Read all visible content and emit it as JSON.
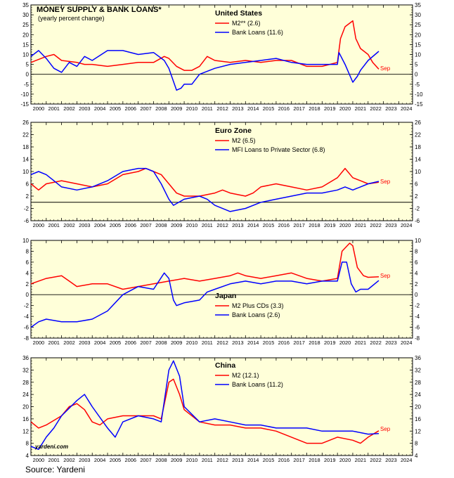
{
  "title": "MONEY SUPPLY & BANK LOANS*",
  "subtitle": "(yearly percent change)",
  "source": "Source: Yardeni",
  "watermark": "yardeni.com",
  "colors": {
    "plot_bg": "#ffffd9",
    "red": "#ff0000",
    "blue": "#0000ff",
    "axis": "#000000",
    "grid": "#bbbbbb"
  },
  "chart_data": [
    {
      "type": "line",
      "region": "United States",
      "xlim": [
        2000,
        2024.9
      ],
      "ylim": [
        -15,
        35
      ],
      "yticks": [
        -15,
        -10,
        -5,
        0,
        5,
        10,
        15,
        20,
        25,
        30,
        35
      ],
      "xticks": [
        "2000",
        "2001",
        "2002",
        "2003",
        "2004",
        "2005",
        "2006",
        "2007",
        "2008",
        "2009",
        "2010",
        "2011",
        "2012",
        "2013",
        "2014",
        "2015",
        "2016",
        "2017",
        "2018",
        "2019",
        "2020",
        "2021",
        "2022",
        "2023",
        "2024"
      ],
      "annotations": [
        "Sep"
      ],
      "series": [
        {
          "name": "M2** (2.6)",
          "color": "red",
          "x": [
            2000,
            2001,
            2001.5,
            2002,
            2003,
            2003.5,
            2004,
            2005,
            2006,
            2007,
            2008,
            2008.7,
            2009,
            2009.5,
            2010,
            2010.5,
            2011,
            2011.5,
            2012,
            2013,
            2014,
            2015,
            2016,
            2017,
            2018,
            2019,
            2019.5,
            2020,
            2020.2,
            2020.5,
            2021,
            2021.2,
            2021.5,
            2022,
            2022.3,
            2022.7
          ],
          "y": [
            6,
            9,
            10,
            7,
            6,
            5,
            5,
            4,
            5,
            6,
            6,
            9,
            8,
            4,
            2,
            2,
            4,
            9,
            7,
            6,
            7,
            6,
            7,
            7,
            4,
            4,
            5,
            6,
            18,
            24,
            27,
            18,
            13,
            10,
            6,
            2.6
          ]
        },
        {
          "name": "Bank Loans (11.6)",
          "color": "blue",
          "x": [
            2000,
            2000.5,
            2001,
            2001.5,
            2002,
            2002.5,
            2003,
            2003.5,
            2004,
            2005,
            2006,
            2007,
            2008,
            2008.7,
            2009,
            2009.5,
            2009.8,
            2010,
            2010.5,
            2011,
            2012,
            2013,
            2014,
            2015,
            2016,
            2017,
            2018,
            2019,
            2020,
            2020.1,
            2020.5,
            2021,
            2021.3,
            2021.5,
            2022,
            2022.7
          ],
          "y": [
            9,
            12,
            8,
            3,
            1,
            6,
            4,
            9,
            7,
            12,
            12,
            10,
            11,
            7,
            3,
            -8,
            -7,
            -5,
            -5,
            0,
            3,
            5,
            6,
            7,
            8,
            6,
            5,
            5,
            5,
            11,
            5,
            -4,
            -1,
            2,
            7,
            11.6
          ]
        }
      ]
    },
    {
      "type": "line",
      "region": "Euro Zone",
      "xlim": [
        2000,
        2024.9
      ],
      "ylim": [
        -6,
        26
      ],
      "yticks": [
        -6,
        -2,
        2,
        6,
        10,
        14,
        18,
        22,
        26
      ],
      "xticks": [
        "2000",
        "2001",
        "2002",
        "2003",
        "2004",
        "2005",
        "2006",
        "2007",
        "2008",
        "2009",
        "2010",
        "2011",
        "2012",
        "2013",
        "2014",
        "2015",
        "2016",
        "2017",
        "2018",
        "2019",
        "2020",
        "2021",
        "2022",
        "2023",
        "2024"
      ],
      "annotations": [
        "Sep"
      ],
      "series": [
        {
          "name": "M2 (6.5)",
          "color": "red",
          "x": [
            2000,
            2000.5,
            2001,
            2002,
            2003,
            2004,
            2005,
            2006,
            2007,
            2007.5,
            2008,
            2008.5,
            2009,
            2009.5,
            2010,
            2011,
            2012,
            2012.5,
            2013,
            2014,
            2014.5,
            2015,
            2016,
            2017,
            2018,
            2019,
            2020,
            2020.5,
            2021,
            2021.5,
            2022,
            2022.7
          ],
          "y": [
            6,
            4,
            6,
            7,
            6,
            5,
            6,
            9,
            10,
            11,
            10,
            9,
            6,
            3,
            2,
            2,
            3,
            4,
            3,
            2,
            3,
            5,
            6,
            5,
            4,
            5,
            8,
            11,
            8,
            7,
            6,
            6.5
          ]
        },
        {
          "name": "MFI Loans to Private Sector (6.8)",
          "color": "blue",
          "x": [
            2000,
            2000.5,
            2001,
            2001.5,
            2002,
            2003,
            2004,
            2005,
            2006,
            2007,
            2007.5,
            2008,
            2008.5,
            2009,
            2009.3,
            2010,
            2011,
            2011.5,
            2012,
            2013,
            2014,
            2015,
            2016,
            2017,
            2018,
            2019,
            2020,
            2020.5,
            2021,
            2021.5,
            2022,
            2022.7
          ],
          "y": [
            9,
            10,
            9,
            7,
            5,
            4,
            5,
            7,
            10,
            11,
            11,
            10,
            6,
            1,
            -1,
            1,
            2,
            1,
            -1,
            -3,
            -2,
            0,
            1,
            2,
            3,
            3,
            4,
            5,
            4,
            5,
            6,
            6.8
          ]
        }
      ]
    },
    {
      "type": "line",
      "region": "Japan",
      "xlim": [
        2000,
        2024.9
      ],
      "ylim": [
        -8,
        10
      ],
      "yticks": [
        -8,
        -6,
        -4,
        -2,
        0,
        2,
        4,
        6,
        8,
        10
      ],
      "xticks": [
        "2000",
        "2001",
        "2002",
        "2003",
        "2004",
        "2005",
        "2006",
        "2007",
        "2008",
        "2009",
        "2010",
        "2011",
        "2012",
        "2013",
        "2014",
        "2015",
        "2016",
        "2017",
        "2018",
        "2019",
        "2020",
        "2021",
        "2022",
        "2023",
        "2024"
      ],
      "annotations": [
        "Sep"
      ],
      "series": [
        {
          "name": "M2 Plus CDs (3.3)",
          "color": "red",
          "x": [
            2000,
            2001,
            2002,
            2002.5,
            2003,
            2004,
            2005,
            2006,
            2007,
            2008,
            2009,
            2010,
            2011,
            2012,
            2013,
            2013.5,
            2014,
            2015,
            2016,
            2017,
            2018,
            2019,
            2020,
            2020.3,
            2020.8,
            2021,
            2021.3,
            2021.7,
            2022,
            2022.7
          ],
          "y": [
            2,
            3,
            3.5,
            2.5,
            1.5,
            2,
            2,
            1,
            1.5,
            2,
            2.5,
            3,
            2.5,
            3,
            3.5,
            4,
            3.5,
            3,
            3.5,
            4,
            3,
            2.5,
            3,
            8,
            9.5,
            9,
            5,
            3.5,
            3.2,
            3.3
          ]
        },
        {
          "name": "Bank Loans (2.6)",
          "color": "blue",
          "x": [
            2000,
            2000.5,
            2001,
            2002,
            2003,
            2004,
            2005,
            2006,
            2007,
            2008,
            2008.7,
            2009,
            2009.3,
            2009.5,
            2010,
            2011,
            2011.5,
            2012,
            2013,
            2014,
            2015,
            2016,
            2017,
            2018,
            2019,
            2020,
            2020.3,
            2020.6,
            2020.9,
            2021.2,
            2021.5,
            2022,
            2022.7
          ],
          "y": [
            -6,
            -5,
            -4.5,
            -5,
            -5,
            -4.5,
            -3,
            0,
            1.5,
            1,
            4,
            3,
            -1,
            -2,
            -1.5,
            -1,
            0.5,
            1,
            2,
            2.5,
            2,
            2.5,
            2.5,
            2,
            2.5,
            2.5,
            6,
            6,
            2,
            0.5,
            1,
            1,
            2.6
          ]
        }
      ]
    },
    {
      "type": "line",
      "region": "China",
      "xlim": [
        2000,
        2024.9
      ],
      "ylim": [
        4,
        36
      ],
      "yticks": [
        4,
        8,
        12,
        16,
        20,
        24,
        28,
        32,
        36
      ],
      "xticks": [
        "2000",
        "2001",
        "2002",
        "2003",
        "2004",
        "2005",
        "2006",
        "2007",
        "2008",
        "2009",
        "2010",
        "2011",
        "2012",
        "2013",
        "2014",
        "2015",
        "2016",
        "2017",
        "2018",
        "2019",
        "2020",
        "2021",
        "2022",
        "2023",
        "2024"
      ],
      "annotations": [
        "Sep"
      ],
      "series": [
        {
          "name": "M2 (12.1)",
          "color": "red",
          "x": [
            2000,
            2000.5,
            2001,
            2002,
            2002.5,
            2003,
            2003.5,
            2004,
            2004.5,
            2005,
            2006,
            2007,
            2008,
            2008.5,
            2009,
            2009.3,
            2009.7,
            2010,
            2011,
            2012,
            2013,
            2014,
            2015,
            2016,
            2017,
            2018,
            2019,
            2020,
            2021,
            2021.5,
            2022,
            2022.7
          ],
          "y": [
            15,
            13,
            14,
            17,
            20,
            21,
            19,
            15,
            14,
            16,
            17,
            17,
            17,
            16,
            28,
            29,
            24,
            19,
            15,
            14,
            14,
            13,
            13,
            12,
            10,
            8,
            8,
            10,
            9,
            8,
            10,
            12.1
          ]
        },
        {
          "name": "Bank Loans (11.2)",
          "color": "blue",
          "x": [
            2000,
            2000.5,
            2001,
            2001.5,
            2002,
            2003,
            2003.5,
            2004,
            2005,
            2005.5,
            2006,
            2007,
            2008,
            2008.5,
            2009,
            2009.3,
            2009.7,
            2010,
            2011,
            2012,
            2013,
            2014,
            2015,
            2016,
            2017,
            2018,
            2019,
            2020,
            2021,
            2022,
            2022.7
          ],
          "y": [
            7,
            6,
            10,
            13,
            17,
            22,
            24,
            20,
            13,
            10,
            15,
            17,
            16,
            15,
            32,
            35,
            30,
            20,
            15,
            16,
            15,
            14,
            14,
            13,
            13,
            13,
            12,
            12,
            12,
            11,
            11.2
          ]
        }
      ]
    }
  ]
}
